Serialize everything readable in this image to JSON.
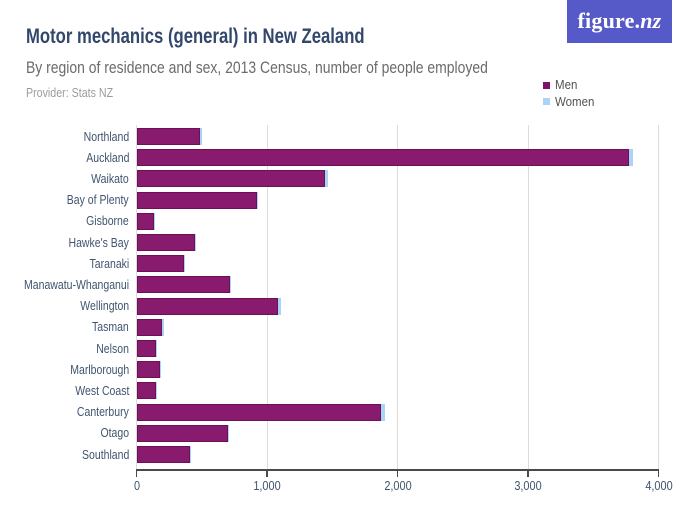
{
  "header": {
    "title": "Motor mechanics (general) in New Zealand",
    "subtitle": "By region of residence and sex, 2013 Census, number of people employed",
    "provider": "Provider: Stats NZ"
  },
  "logo": {
    "text": "figure.nz",
    "text_roman": "figure.",
    "text_italic": "nz",
    "background_color": "#5659C8",
    "text_color": "#FFFFFF"
  },
  "legend": {
    "items": [
      {
        "label": "Men",
        "color": "#7E1266"
      },
      {
        "label": "Women",
        "color": "#A9D4F7"
      }
    ]
  },
  "chart_data": {
    "type": "bar",
    "orientation": "horizontal",
    "stacked": true,
    "title": "Motor mechanics (general) in New Zealand",
    "subtitle": "By region of residence and sex, 2013 Census, number of people employed",
    "xlabel": "",
    "ylabel": "",
    "xlim": [
      0,
      4000
    ],
    "x_ticks": [
      0,
      1000,
      2000,
      3000,
      4000
    ],
    "x_tick_labels": [
      "0",
      "1,000",
      "2,000",
      "3,000",
      "4,000"
    ],
    "grid": true,
    "legend_position": "top-right",
    "categories": [
      "Northland",
      "Auckland",
      "Waikato",
      "Bay of Plenty",
      "Gisborne",
      "Hawke's Bay",
      "Taranaki",
      "Manawatu-Whanganui",
      "Wellington",
      "Tasman",
      "Nelson",
      "Marlborough",
      "West Coast",
      "Canterbury",
      "Otago",
      "Southland"
    ],
    "series": [
      {
        "name": "Men",
        "color": "#891B6F",
        "edge_color": "#6E0F58",
        "values": [
          489,
          3777,
          1446,
          921,
          132,
          447,
          363,
          714,
          1086,
          198,
          153,
          180,
          150,
          1875,
          699,
          408
        ]
      },
      {
        "name": "Women",
        "color": "#A9D4F7",
        "edge_color": "#A9D4F7",
        "values": [
          12,
          27,
          21,
          12,
          3,
          9,
          6,
          12,
          18,
          12,
          6,
          6,
          3,
          30,
          12,
          9
        ]
      }
    ]
  },
  "colors": {
    "title": "#32476B",
    "subtitle": "#6B6B6B",
    "provider": "#9C9C9C",
    "axis_labels": "#41556E",
    "legend_text": "#525252",
    "gridline": "#DCDCDC",
    "axis_line": "#4A4A4A",
    "background": "#FFFFFF"
  }
}
